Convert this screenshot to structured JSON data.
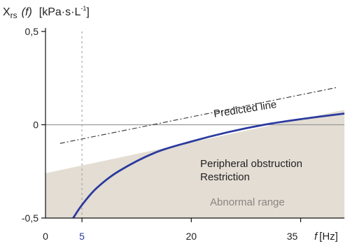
{
  "chart_data": {
    "type": "line",
    "y_axis_label": {
      "main": "X",
      "sub": "rs",
      "func": "(f)",
      "unit_prefix": "[kPa·s·L",
      "unit_exp": "-1",
      "unit_suffix": "]"
    },
    "x_axis_label": {
      "symbol": "f",
      "unit": "[Hz]"
    },
    "x_ticks": [
      {
        "value": 0,
        "label": "0",
        "color": "#222222"
      },
      {
        "value": 5,
        "label": "5",
        "color": "#2b3a9e"
      },
      {
        "value": 20,
        "label": "20",
        "color": "#222222"
      },
      {
        "value": 35,
        "label": "35",
        "color": "#222222"
      }
    ],
    "y_ticks": [
      {
        "value": 0.5,
        "label": "0,5"
      },
      {
        "value": 0,
        "label": "0"
      },
      {
        "value": -0.5,
        "label": "-0,5"
      }
    ],
    "xlim": [
      0,
      41
    ],
    "ylim": [
      -0.5,
      0.5
    ],
    "reference_line_x": 5,
    "zero_line_y": 0,
    "abnormal_region": {
      "label": "Abnormal range",
      "upper_boundary": [
        {
          "x": 0,
          "y": -0.26
        },
        {
          "x": 41,
          "y": 0.08
        }
      ],
      "color": "#e3ddd3"
    },
    "predicted_line": {
      "label": "Predicted line",
      "points": [
        {
          "x": 2,
          "y": -0.1
        },
        {
          "x": 40,
          "y": 0.2
        }
      ],
      "color": "#333333"
    },
    "patient_curve": {
      "points": [
        {
          "x": 3.8,
          "y": -0.5
        },
        {
          "x": 5,
          "y": -0.43
        },
        {
          "x": 7,
          "y": -0.34
        },
        {
          "x": 10,
          "y": -0.25
        },
        {
          "x": 15,
          "y": -0.15
        },
        {
          "x": 20,
          "y": -0.09
        },
        {
          "x": 25,
          "y": -0.04
        },
        {
          "x": 30,
          "y": 0.0
        },
        {
          "x": 35,
          "y": 0.03
        },
        {
          "x": 41,
          "y": 0.06
        }
      ],
      "color": "#2b3a9e"
    },
    "annotations": [
      "Peripheral obstruction",
      "Restriction"
    ]
  }
}
